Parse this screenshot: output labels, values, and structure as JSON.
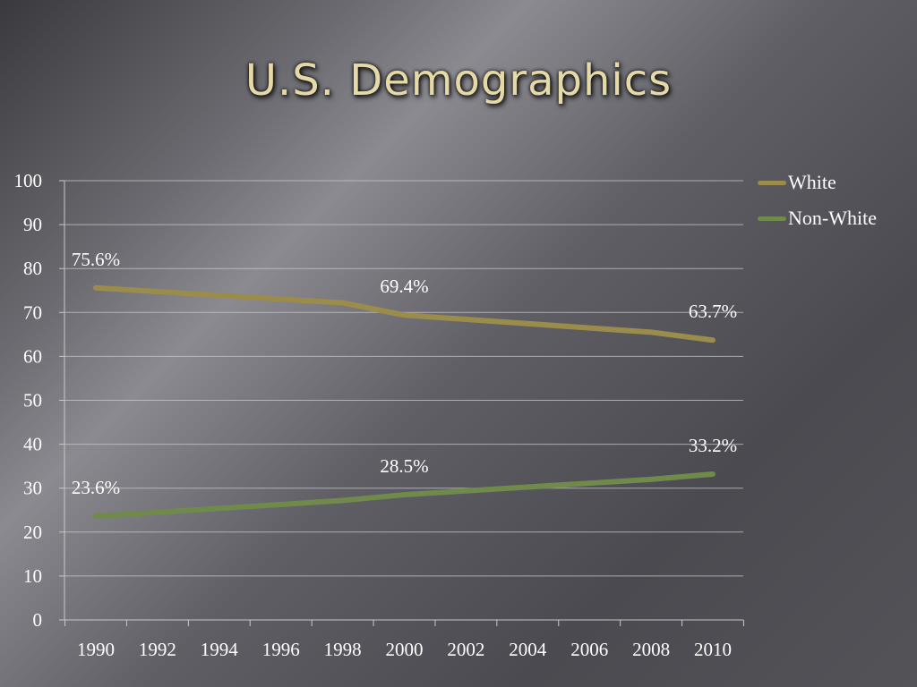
{
  "slide": {
    "title": "U.S. Demographics"
  },
  "chart_data": {
    "type": "line",
    "title": "",
    "xlabel": "",
    "ylabel": "",
    "categories": [
      "1990",
      "1992",
      "1994",
      "1996",
      "1998",
      "2000",
      "2002",
      "2004",
      "2006",
      "2008",
      "2010"
    ],
    "ylim": [
      0,
      100
    ],
    "yticks": [
      "0",
      "10",
      "20",
      "30",
      "40",
      "50",
      "60",
      "70",
      "80",
      "90",
      "100"
    ],
    "grid": true,
    "legend_position": "top-right",
    "series": [
      {
        "name": "White",
        "color": "#9c8c4c",
        "x": [
          1990,
          1998,
          2000,
          2008,
          2010
        ],
        "values": [
          75.6,
          72.2,
          69.4,
          65.5,
          63.7
        ],
        "labels": [
          {
            "x": 1990,
            "y": 75.6,
            "text": "75.6%"
          },
          {
            "x": 2000,
            "y": 69.4,
            "text": "69.4%"
          },
          {
            "x": 2010,
            "y": 63.7,
            "text": "63.7%"
          }
        ]
      },
      {
        "name": "Non-White",
        "color": "#6f8a4a",
        "x": [
          1990,
          1998,
          2000,
          2008,
          2010
        ],
        "values": [
          23.6,
          27.2,
          28.5,
          32.0,
          33.2
        ],
        "labels": [
          {
            "x": 1990,
            "y": 23.6,
            "text": "23.6%"
          },
          {
            "x": 2000,
            "y": 28.5,
            "text": "28.5%"
          },
          {
            "x": 2010,
            "y": 33.2,
            "text": "33.2%"
          }
        ]
      }
    ]
  }
}
